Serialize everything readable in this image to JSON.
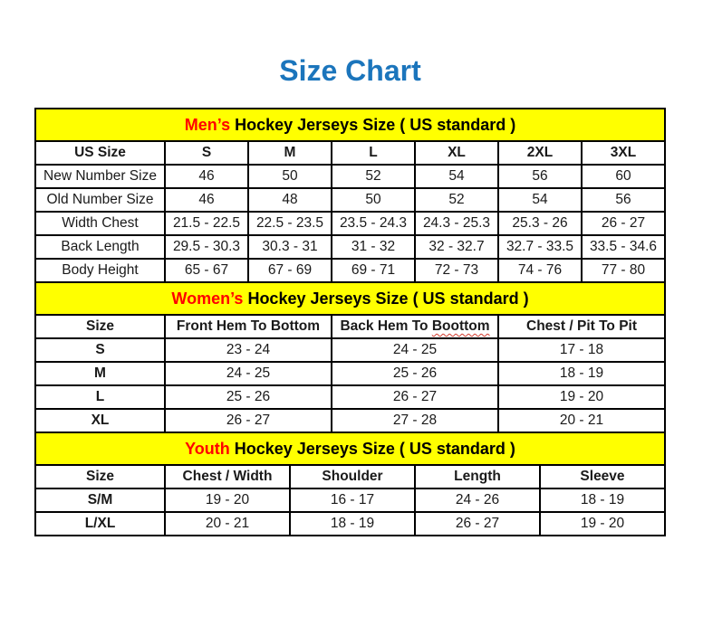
{
  "page": {
    "title": "Size Chart"
  },
  "colors": {
    "title_blue": "#1B75BC",
    "accent_red": "#FF0000",
    "section_yellow": "#FFFF00",
    "border_black": "#000000"
  },
  "mens": {
    "section_red_word": "Men’s",
    "section_rest": " Hockey Jerseys Size ( US standard )",
    "columns": [
      "US Size",
      "S",
      "M",
      "L",
      "XL",
      "2XL",
      "3XL"
    ],
    "rows": [
      {
        "label": "New Number Size",
        "values": [
          "46",
          "50",
          "52",
          "54",
          "56",
          "60"
        ]
      },
      {
        "label": "Old Number Size",
        "values": [
          "46",
          "48",
          "50",
          "52",
          "54",
          "56"
        ]
      },
      {
        "label": "Width Chest",
        "values": [
          "21.5 - 22.5",
          "22.5 - 23.5",
          "23.5 - 24.3",
          "24.3 - 25.3",
          "25.3 - 26",
          "26 - 27"
        ]
      },
      {
        "label": "Back Length",
        "values": [
          "29.5 - 30.3",
          "30.3 - 31",
          "31 - 32",
          "32 - 32.7",
          "32.7 - 33.5",
          "33.5 - 34.6"
        ]
      },
      {
        "label": "Body Height",
        "values": [
          "65 - 67",
          "67 - 69",
          "69 - 71",
          "72 - 73",
          "74 - 76",
          "77 - 80"
        ]
      }
    ]
  },
  "womens": {
    "section_red_word": "Women’s",
    "section_rest": " Hockey Jerseys Size ( US standard )",
    "columns": [
      "Size",
      "Front Hem To Bottom",
      "Back Hem To Boottom",
      "Chest / Pit To Pit"
    ],
    "back_hem_header": {
      "prefix": "Back Hem To ",
      "typo_word": "Boottom"
    },
    "rows": [
      {
        "label": "S",
        "values": [
          "23 - 24",
          "24 - 25",
          "17 - 18"
        ]
      },
      {
        "label": "M",
        "values": [
          "24 - 25",
          "25 - 26",
          "18 - 19"
        ]
      },
      {
        "label": "L",
        "values": [
          "25 - 26",
          "26 - 27",
          "19 - 20"
        ]
      },
      {
        "label": "XL",
        "values": [
          "26 - 27",
          "27 - 28",
          "20 - 21"
        ]
      }
    ]
  },
  "youth": {
    "section_red_word": "Youth",
    "section_rest": " Hockey Jerseys Size ( US standard )",
    "columns": [
      "Size",
      "Chest / Width",
      "Shoulder",
      "Length",
      "Sleeve"
    ],
    "rows": [
      {
        "label": "S/M",
        "values": [
          "19 - 20",
          "16 - 17",
          "24 - 26",
          "18 - 19"
        ]
      },
      {
        "label": "L/XL",
        "values": [
          "20 - 21",
          "18 - 19",
          "26 - 27",
          "19 - 20"
        ]
      }
    ]
  }
}
